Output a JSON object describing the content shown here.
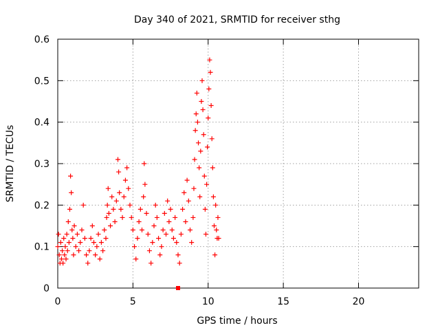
{
  "chart_data": {
    "type": "scatter",
    "title": "Day 340 of 2021, SRMTID for receiver sthg",
    "xlabel": "GPS time / hours",
    "ylabel": "SRMTID / TECUs",
    "xlim": [
      0,
      24
    ],
    "ylim": [
      0,
      0.6
    ],
    "xticks": [
      0,
      5,
      10,
      15,
      20
    ],
    "xtick_labels": [
      "0",
      "5",
      "10",
      "15",
      "20"
    ],
    "yticks": [
      0,
      0.1,
      0.2,
      0.3,
      0.4,
      0.5,
      0.6
    ],
    "ytick_labels": [
      "0",
      "0.1",
      "0.2",
      "0.3",
      "0.4",
      "0.5",
      "0.6"
    ],
    "grid": true,
    "legend": "none",
    "marker": "+",
    "series": [
      {
        "name": "SRMTID",
        "color": "#ff0000",
        "points": [
          [
            0.0,
            0.1
          ],
          [
            0.05,
            0.13
          ],
          [
            0.1,
            0.08
          ],
          [
            0.15,
            0.06
          ],
          [
            0.2,
            0.11
          ],
          [
            0.25,
            0.07
          ],
          [
            0.3,
            0.09
          ],
          [
            0.35,
            0.06
          ],
          [
            0.4,
            0.12
          ],
          [
            0.45,
            0.08
          ],
          [
            0.5,
            0.1
          ],
          [
            0.55,
            0.07
          ],
          [
            0.6,
            0.13
          ],
          [
            0.65,
            0.09
          ],
          [
            0.7,
            0.16
          ],
          [
            0.75,
            0.11
          ],
          [
            0.8,
            0.19
          ],
          [
            0.85,
            0.27
          ],
          [
            0.9,
            0.23
          ],
          [
            0.95,
            0.14
          ],
          [
            1.0,
            0.12
          ],
          [
            1.05,
            0.08
          ],
          [
            1.1,
            0.15
          ],
          [
            1.2,
            0.1
          ],
          [
            1.3,
            0.13
          ],
          [
            1.4,
            0.09
          ],
          [
            1.5,
            0.11
          ],
          [
            1.6,
            0.14
          ],
          [
            1.7,
            0.2
          ],
          [
            1.8,
            0.12
          ],
          [
            1.9,
            0.08
          ],
          [
            2.0,
            0.06
          ],
          [
            2.1,
            0.09
          ],
          [
            2.2,
            0.12
          ],
          [
            2.3,
            0.15
          ],
          [
            2.4,
            0.11
          ],
          [
            2.5,
            0.08
          ],
          [
            2.6,
            0.1
          ],
          [
            2.7,
            0.13
          ],
          [
            2.8,
            0.07
          ],
          [
            2.9,
            0.11
          ],
          [
            3.0,
            0.09
          ],
          [
            3.1,
            0.14
          ],
          [
            3.2,
            0.12
          ],
          [
            3.25,
            0.17
          ],
          [
            3.3,
            0.2
          ],
          [
            3.35,
            0.24
          ],
          [
            3.4,
            0.18
          ],
          [
            3.5,
            0.15
          ],
          [
            3.6,
            0.22
          ],
          [
            3.7,
            0.19
          ],
          [
            3.8,
            0.16
          ],
          [
            3.9,
            0.21
          ],
          [
            4.0,
            0.31
          ],
          [
            4.05,
            0.28
          ],
          [
            4.1,
            0.23
          ],
          [
            4.2,
            0.19
          ],
          [
            4.3,
            0.17
          ],
          [
            4.4,
            0.22
          ],
          [
            4.5,
            0.26
          ],
          [
            4.6,
            0.29
          ],
          [
            4.7,
            0.24
          ],
          [
            4.8,
            0.2
          ],
          [
            4.9,
            0.17
          ],
          [
            5.0,
            0.14
          ],
          [
            5.1,
            0.1
          ],
          [
            5.2,
            0.07
          ],
          [
            5.3,
            0.12
          ],
          [
            5.4,
            0.16
          ],
          [
            5.5,
            0.19
          ],
          [
            5.6,
            0.14
          ],
          [
            5.7,
            0.22
          ],
          [
            5.75,
            0.3
          ],
          [
            5.8,
            0.25
          ],
          [
            5.9,
            0.18
          ],
          [
            6.0,
            0.13
          ],
          [
            6.1,
            0.09
          ],
          [
            6.2,
            0.06
          ],
          [
            6.3,
            0.11
          ],
          [
            6.4,
            0.15
          ],
          [
            6.5,
            0.2
          ],
          [
            6.6,
            0.17
          ],
          [
            6.7,
            0.12
          ],
          [
            6.8,
            0.08
          ],
          [
            6.9,
            0.1
          ],
          [
            7.0,
            0.14
          ],
          [
            7.1,
            0.18
          ],
          [
            7.2,
            0.13
          ],
          [
            7.3,
            0.21
          ],
          [
            7.4,
            0.16
          ],
          [
            7.5,
            0.19
          ],
          [
            7.6,
            0.14
          ],
          [
            7.7,
            0.12
          ],
          [
            7.8,
            0.17
          ],
          [
            7.9,
            0.11
          ],
          [
            8.0,
            0.08
          ],
          [
            8.1,
            0.06
          ],
          [
            8.2,
            0.13
          ],
          [
            8.3,
            0.19
          ],
          [
            8.4,
            0.23
          ],
          [
            8.5,
            0.16
          ],
          [
            8.6,
            0.26
          ],
          [
            8.7,
            0.21
          ],
          [
            8.8,
            0.14
          ],
          [
            8.9,
            0.11
          ],
          [
            9.0,
            0.17
          ],
          [
            9.05,
            0.24
          ],
          [
            9.1,
            0.31
          ],
          [
            9.15,
            0.38
          ],
          [
            9.2,
            0.42
          ],
          [
            9.25,
            0.47
          ],
          [
            9.3,
            0.4
          ],
          [
            9.35,
            0.35
          ],
          [
            9.4,
            0.29
          ],
          [
            9.45,
            0.22
          ],
          [
            9.5,
            0.33
          ],
          [
            9.55,
            0.45
          ],
          [
            9.6,
            0.5
          ],
          [
            9.65,
            0.43
          ],
          [
            9.7,
            0.37
          ],
          [
            9.75,
            0.27
          ],
          [
            9.8,
            0.19
          ],
          [
            9.85,
            0.13
          ],
          [
            9.9,
            0.25
          ],
          [
            9.95,
            0.34
          ],
          [
            10.0,
            0.41
          ],
          [
            10.05,
            0.48
          ],
          [
            10.1,
            0.55
          ],
          [
            10.15,
            0.52
          ],
          [
            10.2,
            0.44
          ],
          [
            10.25,
            0.36
          ],
          [
            10.3,
            0.29
          ],
          [
            10.35,
            0.22
          ],
          [
            10.4,
            0.15
          ],
          [
            10.45,
            0.08
          ],
          [
            10.5,
            0.2
          ],
          [
            10.55,
            0.14
          ],
          [
            10.6,
            0.12
          ],
          [
            10.65,
            0.17
          ],
          [
            10.7,
            0.12
          ]
        ]
      }
    ],
    "annotations": [
      {
        "type": "filled-square-marker",
        "x": 8.0,
        "y": 0.0
      }
    ]
  }
}
